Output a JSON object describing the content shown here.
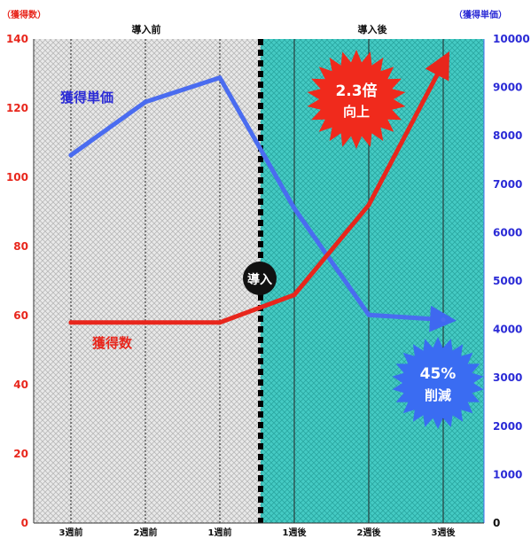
{
  "chart_data": {
    "type": "line",
    "x": [
      "3週前",
      "2週前",
      "1週前",
      "1週後",
      "2週後",
      "3週後"
    ],
    "left_unit": "（獲得数）",
    "right_unit": "（獲得単価）",
    "period_before": "導入前",
    "period_after": "導入後",
    "intro_label": "導入",
    "left_axis": {
      "ylim": [
        0,
        140
      ],
      "ticks": [
        "0",
        "20",
        "40",
        "60",
        "80",
        "100",
        "120",
        "140"
      ]
    },
    "right_axis": {
      "ylim": [
        0,
        10000
      ],
      "ticks": [
        "0",
        "1000",
        "2000",
        "3000",
        "4000",
        "5000",
        "6000",
        "7000",
        "8000",
        "9000",
        "10000"
      ]
    },
    "series": [
      {
        "name": "獲得単価",
        "axis": "right",
        "color": "#4a6cf0",
        "values": [
          7600,
          8700,
          9200,
          6500,
          4300,
          4200
        ]
      },
      {
        "name": "獲得数",
        "axis": "left",
        "color": "#e8261c",
        "values": [
          58,
          58,
          58,
          66,
          92,
          133
        ]
      }
    ],
    "annotations": [
      {
        "text_line1": "2.3倍",
        "text_line2": "向上",
        "color": "#e8261c"
      },
      {
        "text_line1": "45%",
        "text_line2": "削減",
        "color": "#3a6cf2"
      }
    ],
    "colors": {
      "left_axis": "#e8261c",
      "right_axis": "#2b2bd6",
      "after_bg": "#3cc6c0",
      "before_bg": "#e4e4e4"
    }
  }
}
